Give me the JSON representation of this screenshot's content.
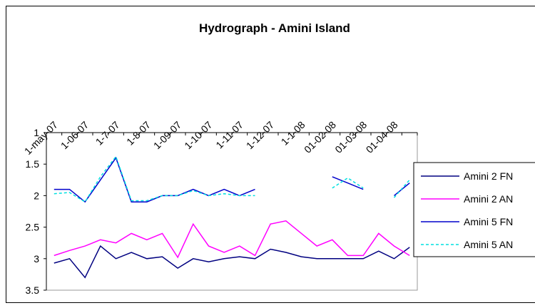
{
  "chart_data": {
    "type": "line",
    "title": "Hydrograph - Amini Island",
    "categories": [
      "1-may-07",
      null,
      "1-06-07",
      null,
      "1-7-07",
      null,
      "1-8-07",
      null,
      "1-09-07",
      null,
      "1-10-07",
      null,
      "1-11-07",
      null,
      "1-12-07",
      null,
      "1-1-08",
      null,
      "01-02-08",
      null,
      "01-03-08",
      null,
      "01-04-08",
      null
    ],
    "ylim": [
      1,
      3.5
    ],
    "yticks": [
      1,
      1.5,
      2,
      2.5,
      3,
      3.5
    ],
    "y_inverted": true,
    "legend": "right",
    "series": [
      {
        "name": "Amini 2 FN",
        "color": "#000080",
        "dash": false,
        "values": [
          3.07,
          3.0,
          3.3,
          2.8,
          3.0,
          2.9,
          3.0,
          2.97,
          3.15,
          3.0,
          3.05,
          3.0,
          2.97,
          3.0,
          2.85,
          2.9,
          2.97,
          3.0,
          3.0,
          3.0,
          3.0,
          2.88,
          3.0,
          2.82
        ]
      },
      {
        "name": "Amini 2 AN",
        "color": "#ff00ff",
        "dash": false,
        "values": [
          2.95,
          2.87,
          2.8,
          2.7,
          2.75,
          2.6,
          2.7,
          2.6,
          2.98,
          2.45,
          2.8,
          2.9,
          2.8,
          2.95,
          2.45,
          2.4,
          2.6,
          2.8,
          2.7,
          2.95,
          2.95,
          2.6,
          2.8,
          2.95
        ]
      },
      {
        "name": "Amini 5 FN",
        "color": "#0000cc",
        "dash": false,
        "values": [
          1.9,
          1.9,
          2.1,
          1.75,
          1.4,
          2.1,
          2.1,
          2.0,
          2.0,
          1.9,
          2.0,
          1.9,
          2.0,
          1.9,
          null,
          null,
          null,
          null,
          1.7,
          1.8,
          1.9,
          null,
          2.0,
          1.8
        ]
      },
      {
        "name": "Amini 5 AN",
        "color": "#00e0e0",
        "dash": true,
        "values": [
          1.97,
          1.95,
          2.1,
          1.7,
          1.38,
          2.08,
          2.08,
          2.0,
          2.0,
          1.92,
          2.0,
          1.97,
          2.0,
          2.0,
          null,
          null,
          null,
          null,
          1.88,
          1.72,
          1.88,
          null,
          2.03,
          1.75
        ]
      }
    ]
  }
}
